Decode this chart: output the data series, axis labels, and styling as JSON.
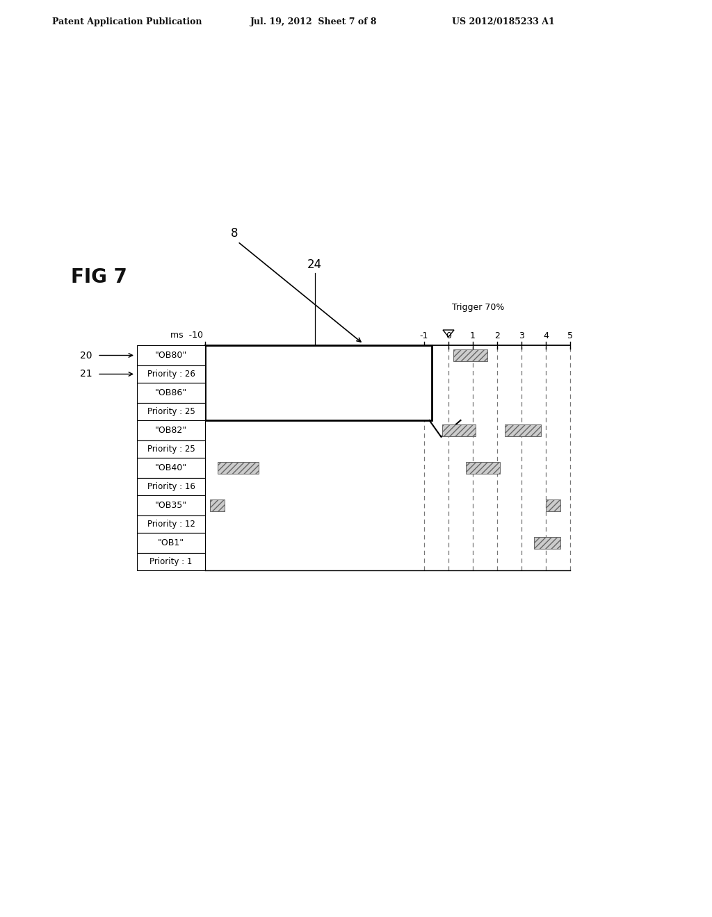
{
  "fig_label": "FIG 7",
  "patent_header": "Patent Application Publication",
  "patent_date": "Jul. 19, 2012  Sheet 7 of 8",
  "patent_number": "US 2012/0185233 A1",
  "background_color": "#ffffff",
  "rows": [
    {
      "name": "\"OB80\"",
      "priority": "Priority : 26",
      "row_idx": 0
    },
    {
      "name": "\"OB86\"",
      "priority": "Priority : 25",
      "row_idx": 1
    },
    {
      "name": "\"OB82\"",
      "priority": "Priority : 25",
      "row_idx": 2
    },
    {
      "name": "\"OB40\"",
      "priority": "Priority : 16",
      "row_idx": 3
    },
    {
      "name": "\"OB35\"",
      "priority": "Priority : 12",
      "row_idx": 4
    },
    {
      "name": "\"OB1\"",
      "priority": "Priority : 1",
      "row_idx": 5
    }
  ],
  "trigger_label": "Trigger 70%",
  "label_8": "8",
  "label_24": "24",
  "label_20": "20",
  "label_21": "21"
}
